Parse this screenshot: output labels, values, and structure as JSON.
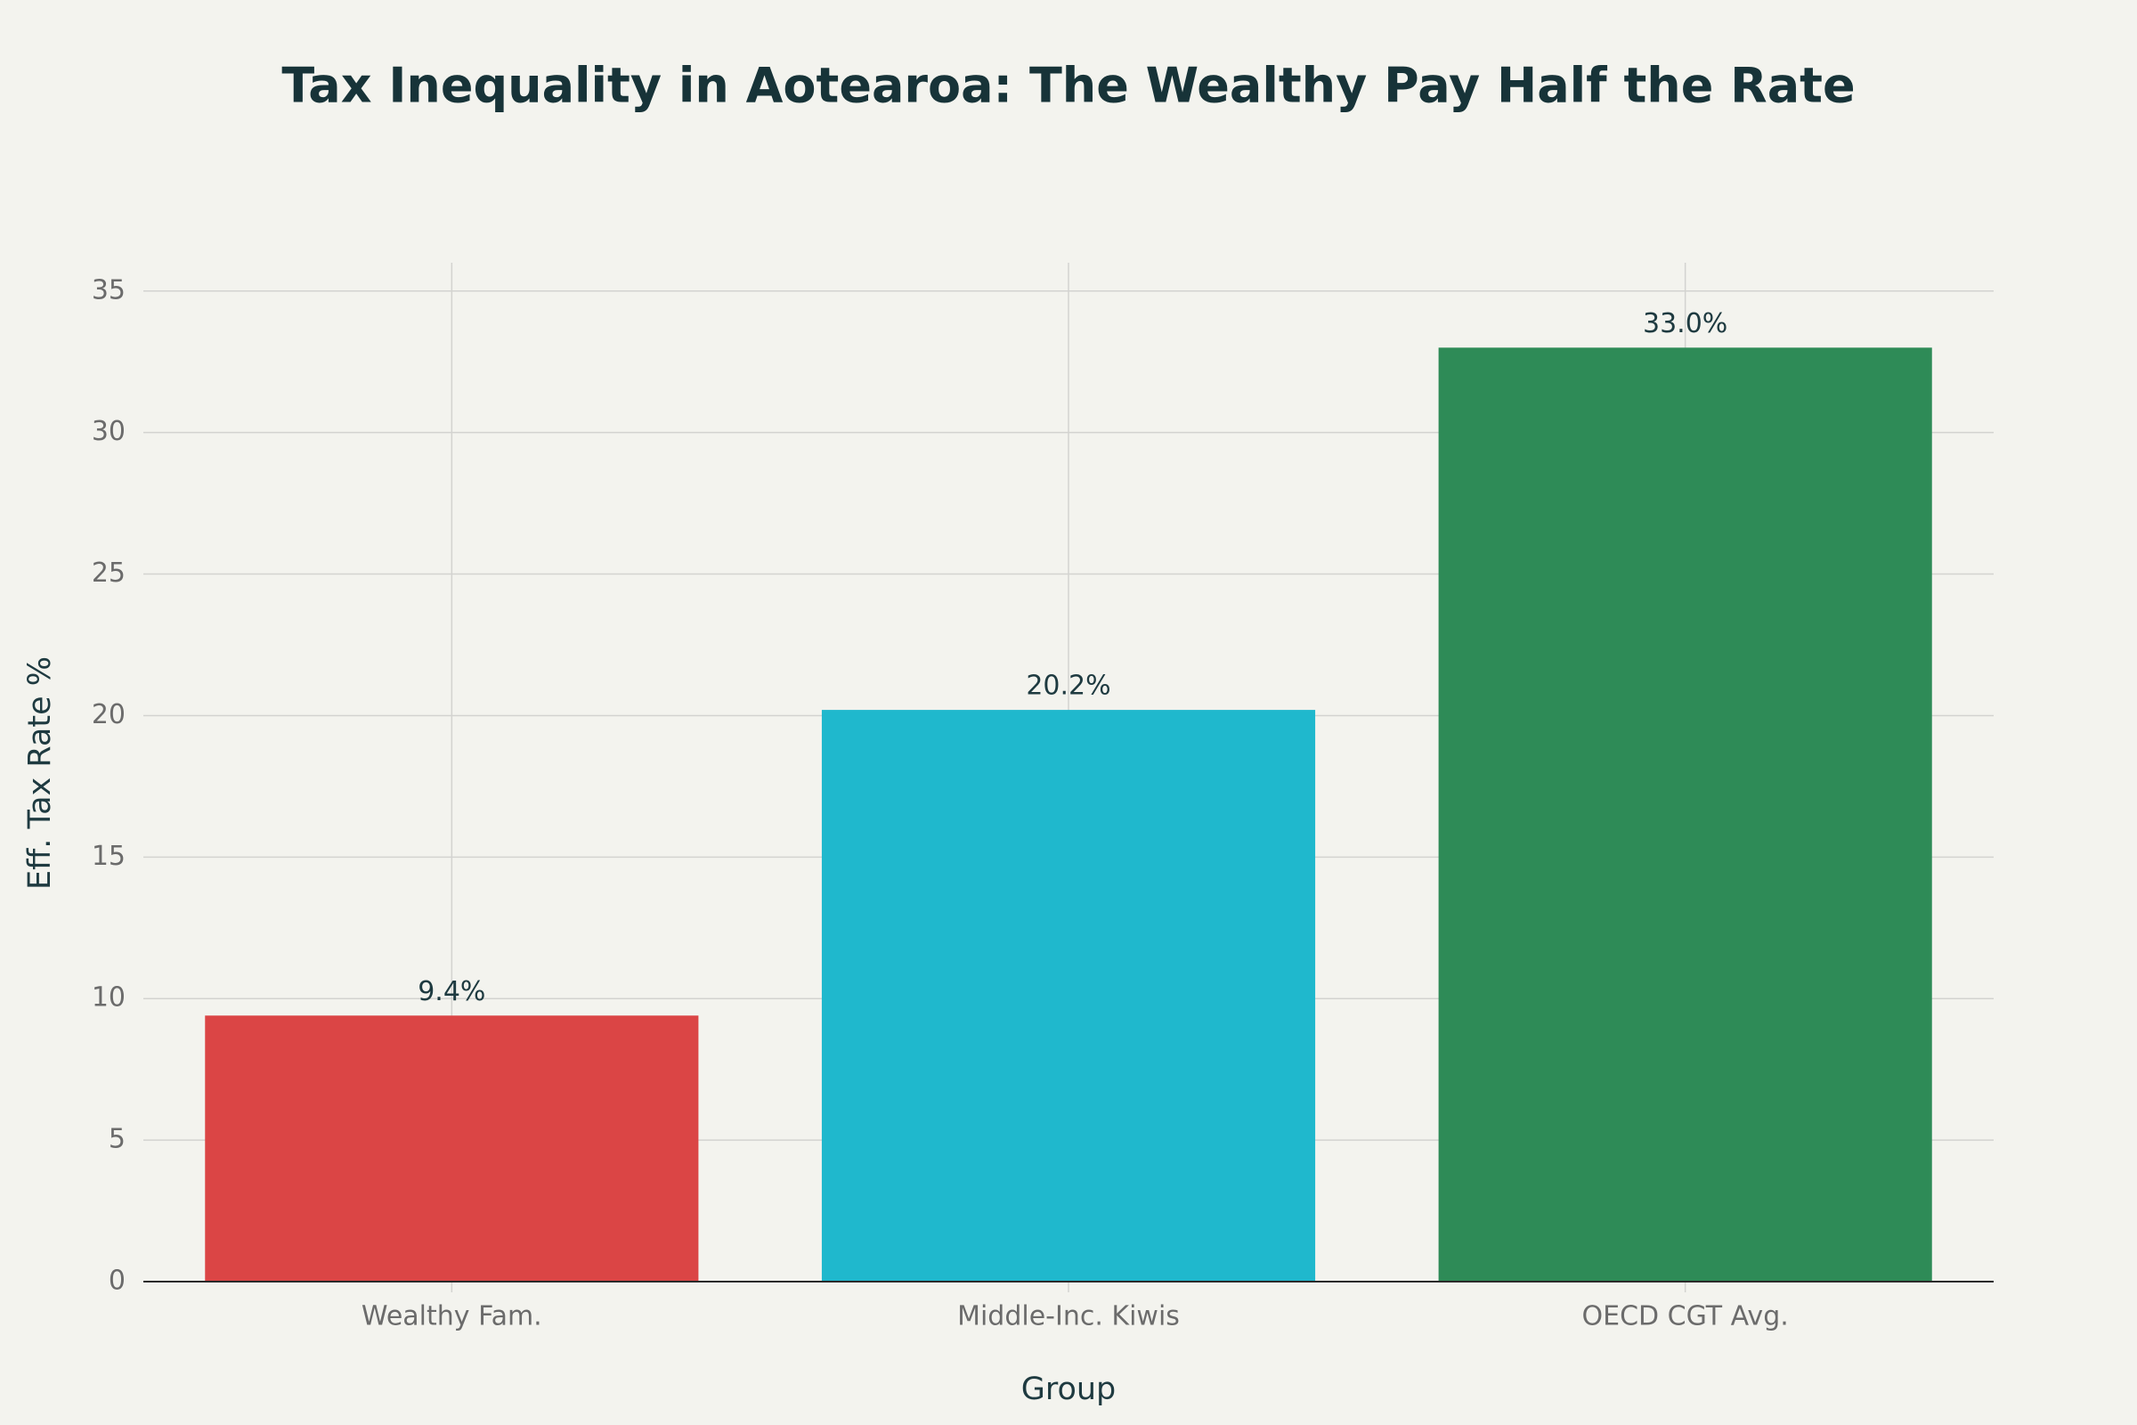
{
  "chart_data": {
    "type": "bar",
    "title": "Tax Inequality in Aotearoa: The Wealthy Pay Half the Rate",
    "x_label": "Group",
    "y_label": "Eff. Tax Rate %",
    "categories": [
      "Wealthy Fam.",
      "Middle-Inc. Kiwis",
      "OECD CGT Avg."
    ],
    "values": [
      9.4,
      20.2,
      33.0
    ],
    "value_labels": [
      "9.4%",
      "20.2%",
      "33.0%"
    ],
    "colors": [
      "#db4545",
      "#1fb8cd",
      "#2e8b57"
    ],
    "ylim": [
      0,
      36
    ],
    "yticks": [
      0,
      5,
      10,
      15,
      20,
      25,
      30,
      35
    ],
    "grid": true
  }
}
